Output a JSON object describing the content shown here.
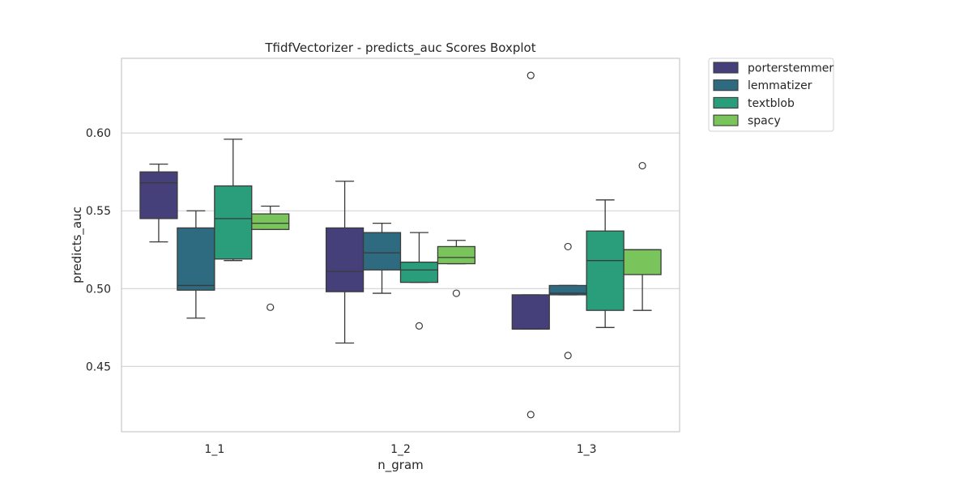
{
  "chart_data": {
    "type": "box",
    "title": "TfidfVectorizer - predicts_auc  Scores Boxplot",
    "xlabel": "n_gram",
    "ylabel": "predicts_auc",
    "categories": [
      "1_1",
      "1_2",
      "1_3"
    ],
    "ylim": [
      0.408,
      0.648
    ],
    "yticks": [
      0.45,
      0.5,
      0.55,
      0.6
    ],
    "ytick_labels": [
      "0.45",
      "0.50",
      "0.55",
      "0.60"
    ],
    "grid": "horizontal",
    "legend_position": "outside-top-right",
    "series": [
      {
        "name": "porterstemmer",
        "color": "#46407a",
        "boxes": [
          {
            "whislo": 0.53,
            "q1": 0.545,
            "med": 0.568,
            "q3": 0.575,
            "whishi": 0.58,
            "fliers": []
          },
          {
            "whislo": 0.465,
            "q1": 0.498,
            "med": 0.511,
            "q3": 0.539,
            "whishi": 0.569,
            "fliers": []
          },
          {
            "whislo": 0.474,
            "q1": 0.474,
            "med": 0.474,
            "q3": 0.496,
            "whishi": 0.496,
            "fliers": [
              0.637,
              0.419
            ]
          }
        ]
      },
      {
        "name": "lemmatizer",
        "color": "#2e6b80",
        "boxes": [
          {
            "whislo": 0.481,
            "q1": 0.499,
            "med": 0.502,
            "q3": 0.539,
            "whishi": 0.55,
            "fliers": []
          },
          {
            "whislo": 0.497,
            "q1": 0.512,
            "med": 0.523,
            "q3": 0.536,
            "whishi": 0.542,
            "fliers": []
          },
          {
            "whislo": 0.496,
            "q1": 0.496,
            "med": 0.497,
            "q3": 0.502,
            "whishi": 0.502,
            "fliers": [
              0.527,
              0.457
            ]
          }
        ]
      },
      {
        "name": "textblob",
        "color": "#2a9d7b",
        "boxes": [
          {
            "whislo": 0.518,
            "q1": 0.519,
            "med": 0.545,
            "q3": 0.566,
            "whishi": 0.596,
            "fliers": []
          },
          {
            "whislo": 0.504,
            "q1": 0.504,
            "med": 0.512,
            "q3": 0.517,
            "whishi": 0.536,
            "fliers": [
              0.476
            ]
          },
          {
            "whislo": 0.475,
            "q1": 0.486,
            "med": 0.518,
            "q3": 0.537,
            "whishi": 0.557,
            "fliers": []
          }
        ]
      },
      {
        "name": "spacy",
        "color": "#79c55c",
        "boxes": [
          {
            "whislo": 0.538,
            "q1": 0.538,
            "med": 0.542,
            "q3": 0.548,
            "whishi": 0.553,
            "fliers": [
              0.488
            ]
          },
          {
            "whislo": 0.516,
            "q1": 0.516,
            "med": 0.52,
            "q3": 0.527,
            "whishi": 0.531,
            "fliers": [
              0.497
            ]
          },
          {
            "whislo": 0.486,
            "q1": 0.509,
            "med": 0.525,
            "q3": 0.525,
            "whishi": 0.525,
            "fliers": [
              0.579
            ]
          }
        ]
      }
    ]
  }
}
